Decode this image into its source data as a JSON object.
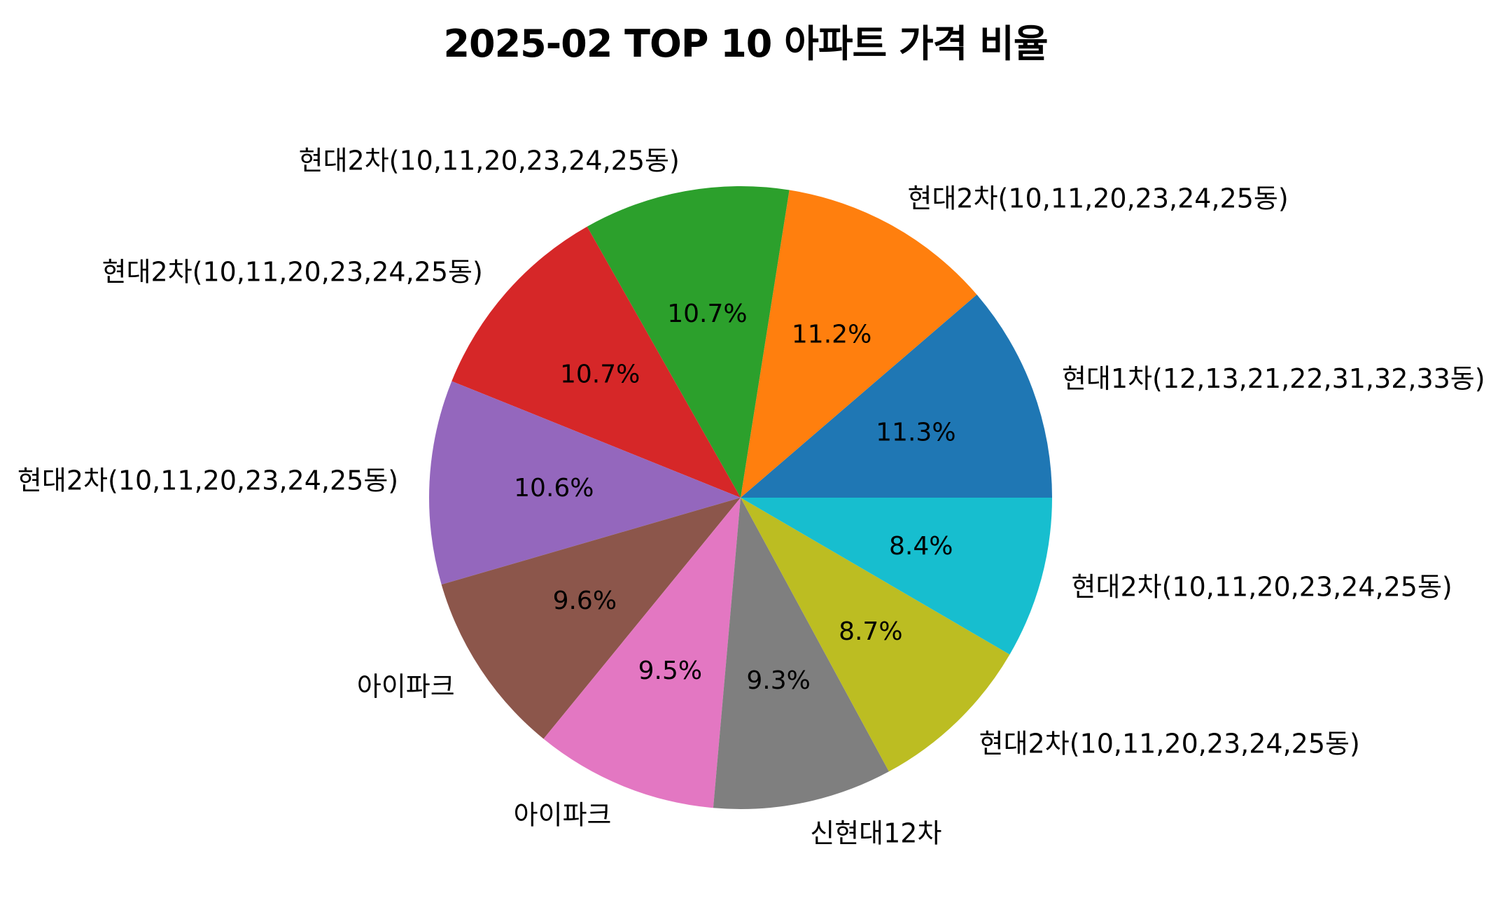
{
  "chart_data": {
    "type": "pie",
    "title": "2025-02 TOP 10 아파트 가격 비율",
    "start_angle_deg": 0,
    "direction": "counterclockwise",
    "slices": [
      {
        "label": "현대1차(12,13,21,22,31,32,33동)",
        "value": 11.3,
        "pct_label": "11.3%",
        "color": "#1f77b4"
      },
      {
        "label": "현대2차(10,11,20,23,24,25동)",
        "value": 11.2,
        "pct_label": "11.2%",
        "color": "#ff7f0e"
      },
      {
        "label": "현대2차(10,11,20,23,24,25동)",
        "value": 10.7,
        "pct_label": "10.7%",
        "color": "#2ca02c"
      },
      {
        "label": "현대2차(10,11,20,23,24,25동)",
        "value": 10.7,
        "pct_label": "10.7%",
        "color": "#d62728"
      },
      {
        "label": "현대2차(10,11,20,23,24,25동)",
        "value": 10.6,
        "pct_label": "10.6%",
        "color": "#9467bd"
      },
      {
        "label": "아이파크",
        "value": 9.6,
        "pct_label": "9.6%",
        "color": "#8c564b"
      },
      {
        "label": "아이파크",
        "value": 9.5,
        "pct_label": "9.5%",
        "color": "#e377c2"
      },
      {
        "label": "신현대12차",
        "value": 9.3,
        "pct_label": "9.3%",
        "color": "#7f7f7f"
      },
      {
        "label": "현대2차(10,11,20,23,24,25동)",
        "value": 8.7,
        "pct_label": "8.7%",
        "color": "#bcbd22"
      },
      {
        "label": "현대2차(10,11,20,23,24,25동)",
        "value": 8.4,
        "pct_label": "8.4%",
        "color": "#17becf"
      }
    ]
  }
}
